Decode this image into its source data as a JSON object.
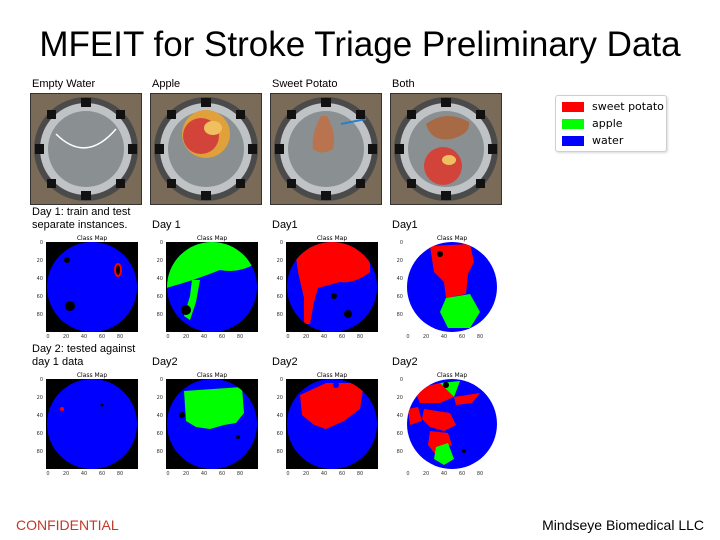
{
  "slide": {
    "title": "MFEIT for Stroke Triage Preliminary Data",
    "confidential": "CONFIDENTIAL",
    "company": "Mindseye Biomedical LLC"
  },
  "columns": [
    {
      "label": "Empty Water"
    },
    {
      "label": "Apple"
    },
    {
      "label": "Sweet Potato"
    },
    {
      "label": "Both"
    }
  ],
  "rows": [
    {
      "label": "Day 1: train and test separate instances.",
      "plot_labels": [
        "",
        "Day 1",
        "Day1",
        "Day1"
      ]
    },
    {
      "label": "Day 2: tested against day 1 data",
      "plot_labels": [
        "",
        "Day2",
        "Day2",
        "Day2"
      ]
    }
  ],
  "plot": {
    "title": "Class Map",
    "yticks": [
      "0",
      "20",
      "40",
      "60",
      "80"
    ],
    "xticks": [
      "0",
      "20",
      "40",
      "60",
      "80"
    ]
  },
  "legend": {
    "entries": [
      {
        "label": "sweet potato",
        "color": "#ff0000"
      },
      {
        "label": "apple",
        "color": "#00ff00"
      },
      {
        "label": "water",
        "color": "#0000ff"
      }
    ]
  },
  "colors": {
    "sweet_potato": "#ff0000",
    "apple": "#00ff00",
    "water": "#0000ff",
    "confidential": "#c0392b"
  }
}
